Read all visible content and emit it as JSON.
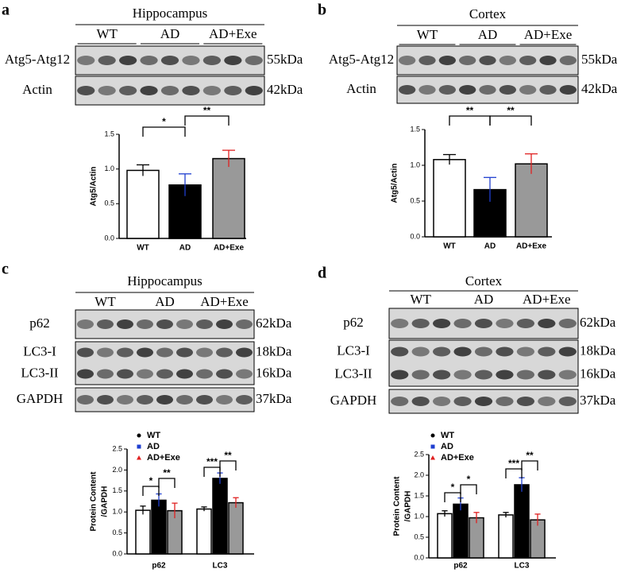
{
  "panels": [
    {
      "letter": "a",
      "region": "Hippocampus",
      "groups": [
        "WT",
        "AD",
        "AD+Exe"
      ],
      "bands": [
        {
          "labels": [
            "Atg5-Atg12"
          ],
          "sizes": [
            "55kDa"
          ]
        },
        {
          "labels": [
            "Actin"
          ],
          "sizes": [
            "42kDa"
          ]
        }
      ]
    },
    {
      "letter": "b",
      "region": "Cortex",
      "groups": [
        "WT",
        "AD",
        "AD+Exe"
      ],
      "bands": [
        {
          "labels": [
            "Atg5-Atg12"
          ],
          "sizes": [
            "55kDa"
          ]
        },
        {
          "labels": [
            "Actin"
          ],
          "sizes": [
            "42kDa"
          ]
        }
      ]
    },
    {
      "letter": "c",
      "region": "Hippocampus",
      "groups": [
        "WT",
        "AD",
        "AD+Exe"
      ],
      "bands": [
        {
          "labels": [
            "p62"
          ],
          "sizes": [
            "62kDa"
          ]
        },
        {
          "labels": [
            "LC3-I",
            "LC3-II"
          ],
          "sizes": [
            "18kDa",
            "16kDa"
          ]
        },
        {
          "labels": [
            "GAPDH"
          ],
          "sizes": [
            "37kDa"
          ]
        }
      ]
    },
    {
      "letter": "d",
      "region": "Cortex",
      "groups": [
        "WT",
        "AD",
        "AD+Exe"
      ],
      "bands": [
        {
          "labels": [
            "p62"
          ],
          "sizes": [
            "62kDa"
          ]
        },
        {
          "labels": [
            "LC3-I",
            "LC3-II"
          ],
          "sizes": [
            "18kDa",
            "16kDa"
          ]
        },
        {
          "labels": [
            "GAPDH"
          ],
          "sizes": [
            "37kDa"
          ]
        }
      ]
    }
  ],
  "chart_data": [
    {
      "type": "bar",
      "ylabel": [
        "Atg5/Actin"
      ],
      "categories": [
        "WT",
        "AD",
        "AD+Exe"
      ],
      "values": [
        0.98,
        0.77,
        1.15
      ],
      "errors": [
        0.08,
        0.16,
        0.12
      ],
      "colors": [
        "#ffffff",
        "#000000",
        "#999999"
      ],
      "point_colors": [
        "#000000",
        "#1f3fd0",
        "#e02020"
      ],
      "ylim": [
        0,
        1.5
      ],
      "yticks": [
        {
          "value": 0,
          "label": "0.0"
        },
        0.5,
        {
          "value": 1,
          "label": "1.0"
        },
        1.5
      ],
      "brackets": [
        {
          "label": "*"
        },
        {
          "label": "**"
        }
      ]
    },
    {
      "type": "bar",
      "ylabel": [
        "Atg5/Actin"
      ],
      "categories": [
        "WT",
        "AD",
        "AD+Exe"
      ],
      "values": [
        1.08,
        0.66,
        1.02
      ],
      "errors": [
        0.07,
        0.17,
        0.14
      ],
      "colors": [
        "#ffffff",
        "#000000",
        "#999999"
      ],
      "point_colors": [
        "#000000",
        "#1f3fd0",
        "#e02020"
      ],
      "ylim": [
        0,
        1.5
      ],
      "yticks": [
        {
          "value": 0,
          "label": "0.0"
        },
        0.5,
        {
          "value": 1,
          "label": "1.0"
        },
        1.5
      ],
      "brackets": [
        {
          "label": "**"
        },
        {
          "label": "**"
        }
      ]
    },
    {
      "type": "grouped_bar",
      "ylabel": [
        "Protein Content",
        "/GAPDH"
      ],
      "categories": [
        "p62",
        "LC3"
      ],
      "series": [
        {
          "name": "WT",
          "color": "#ffffff",
          "point_color": "#000000",
          "marker": "circle",
          "values": [
            1.04,
            1.07
          ],
          "errors": [
            0.1,
            0.05
          ]
        },
        {
          "name": "AD",
          "color": "#000000",
          "point_color": "#1f3fd0",
          "marker": "square",
          "values": [
            1.28,
            1.8
          ],
          "errors": [
            0.15,
            0.13
          ]
        },
        {
          "name": "AD+Exe",
          "color": "#999999",
          "point_color": "#e02020",
          "marker": "triangle",
          "values": [
            1.03,
            1.22
          ],
          "errors": [
            0.18,
            0.12
          ]
        }
      ],
      "ylim": [
        0,
        2.5
      ],
      "yticks": [
        {
          "value": 0,
          "label": "0.0"
        },
        0.5,
        {
          "value": 1,
          "label": "1.0"
        },
        1.5,
        {
          "value": 2,
          "label": "2.0"
        },
        2.5
      ],
      "brackets": [
        [
          {
            "label": "*"
          },
          {
            "label": "**"
          }
        ],
        [
          {
            "label": "***"
          },
          {
            "label": "**"
          }
        ]
      ],
      "legend": "upper left"
    },
    {
      "type": "grouped_bar",
      "ylabel": [
        "Protein Content",
        "/GAPDH"
      ],
      "categories": [
        "p62",
        "LC3"
      ],
      "series": [
        {
          "name": "WT",
          "color": "#ffffff",
          "point_color": "#000000",
          "marker": "circle",
          "values": [
            1.07,
            1.04
          ],
          "errors": [
            0.07,
            0.06
          ]
        },
        {
          "name": "AD",
          "color": "#000000",
          "point_color": "#1f3fd0",
          "marker": "square",
          "values": [
            1.3,
            1.77
          ],
          "errors": [
            0.15,
            0.17
          ]
        },
        {
          "name": "AD+Exe",
          "color": "#999999",
          "point_color": "#e02020",
          "marker": "triangle",
          "values": [
            0.97,
            0.92
          ],
          "errors": [
            0.13,
            0.14
          ]
        }
      ],
      "ylim": [
        0,
        2.5
      ],
      "yticks": [
        {
          "value": 0,
          "label": "0.0"
        },
        0.5,
        {
          "value": 1,
          "label": "1.0"
        },
        1.5,
        {
          "value": 2,
          "label": "2.0"
        },
        2.5
      ],
      "brackets": [
        [
          {
            "label": "*"
          },
          {
            "label": "*"
          }
        ],
        [
          {
            "label": "***"
          },
          {
            "label": "**"
          }
        ]
      ],
      "legend": "upper left"
    }
  ]
}
